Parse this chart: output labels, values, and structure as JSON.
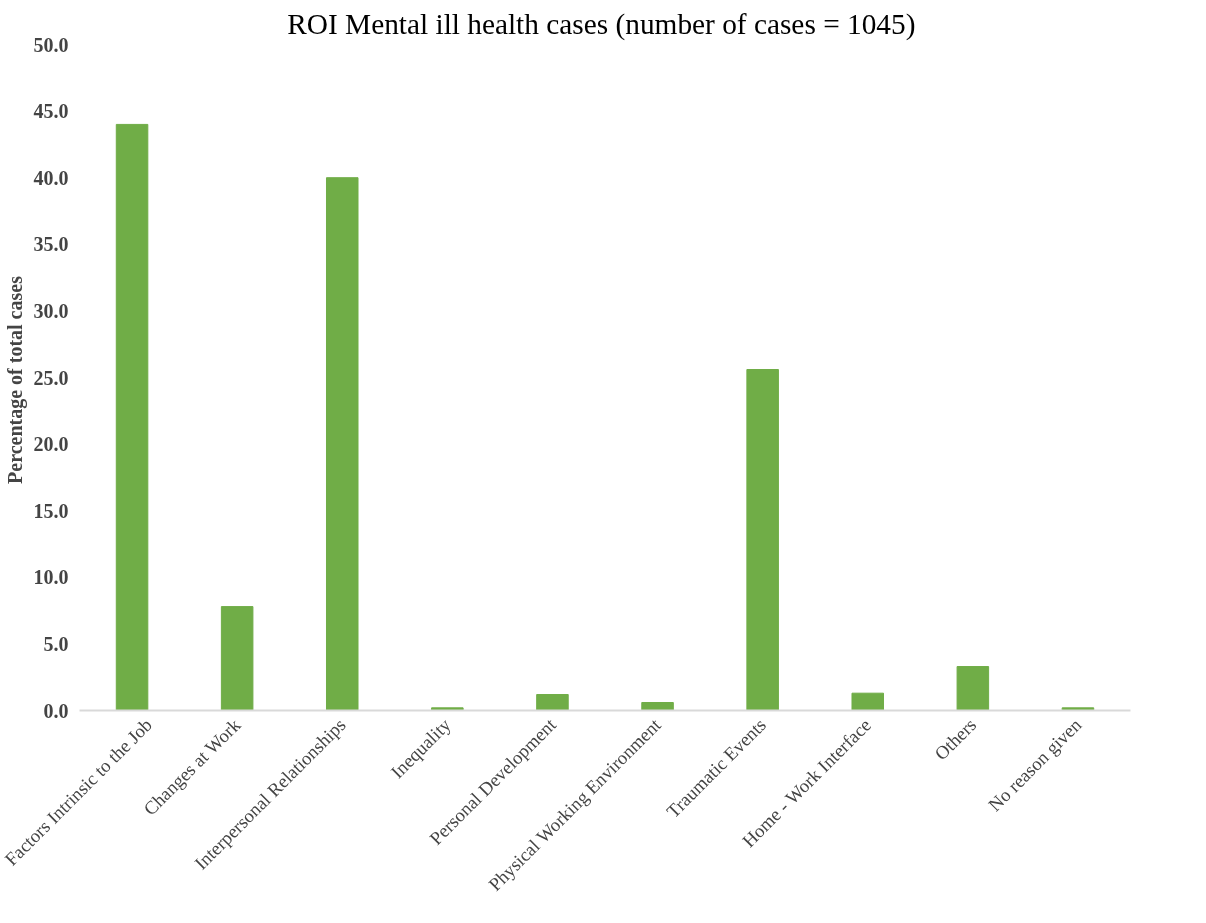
{
  "chart_data": {
    "type": "bar",
    "title": "ROI  Mental ill health cases (number of cases = 1045)",
    "ylabel": "Percentage of total  cases",
    "categories": [
      "Factors Intrinsic to the Job",
      "Changes at Work",
      "Interpersonal Relationships",
      "Inequality",
      "Personal Development",
      "Physical Working Environment",
      "Traumatic Events",
      "Home - Work Interface",
      "Others",
      "No reason given"
    ],
    "values": [
      44.0,
      7.8,
      40.0,
      0.2,
      1.2,
      0.6,
      25.6,
      1.3,
      3.3,
      0.2
    ],
    "color": "#70ad47",
    "ylim": [
      0,
      50
    ],
    "yticks": [
      {
        "value": 0,
        "label": "0.0"
      },
      {
        "value": 5,
        "label": "5.0"
      },
      {
        "value": 10,
        "label": "10.0"
      },
      {
        "value": 15,
        "label": "15.0"
      },
      {
        "value": 20,
        "label": "20.0"
      },
      {
        "value": 25,
        "label": "25.0"
      },
      {
        "value": 30,
        "label": "30.0"
      },
      {
        "value": 35,
        "label": "35.0"
      },
      {
        "value": 40,
        "label": "40.0"
      },
      {
        "value": 45,
        "label": "45.0"
      },
      {
        "value": 50,
        "label": "50.0"
      }
    ],
    "grid": false
  }
}
